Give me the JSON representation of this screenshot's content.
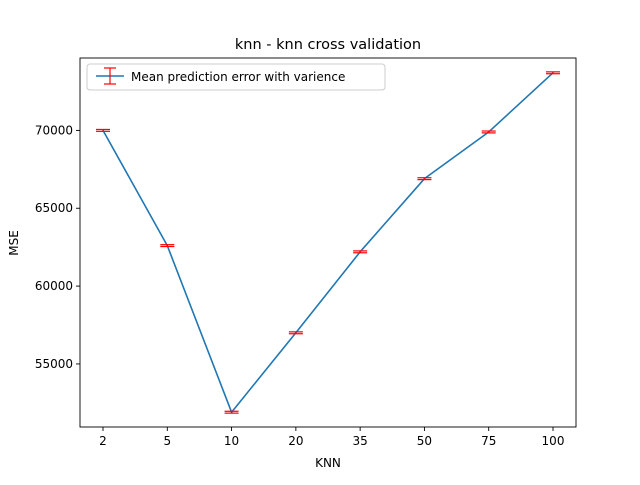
{
  "chart_data": {
    "type": "line",
    "title": "knn - knn cross validation",
    "xlabel": "KNN",
    "ylabel": "MSE",
    "categories": [
      "2",
      "5",
      "10",
      "20",
      "35",
      "50",
      "75",
      "100"
    ],
    "series": [
      {
        "name": "Mean prediction error with varience",
        "values": [
          70000,
          62600,
          51900,
          57000,
          62200,
          66900,
          69900,
          73700
        ],
        "error": [
          60,
          60,
          60,
          60,
          60,
          60,
          60,
          60
        ]
      }
    ],
    "ylim": [
      50950,
      74650
    ],
    "yticks": [
      55000,
      60000,
      65000,
      70000
    ],
    "ytick_labels": [
      "55000",
      "60000",
      "65000",
      "70000"
    ],
    "grid": false,
    "legend_position": "upper-left",
    "colors": {
      "line": "#1f77b4",
      "errorbar": "#ff0000",
      "axes": "#000000"
    }
  }
}
